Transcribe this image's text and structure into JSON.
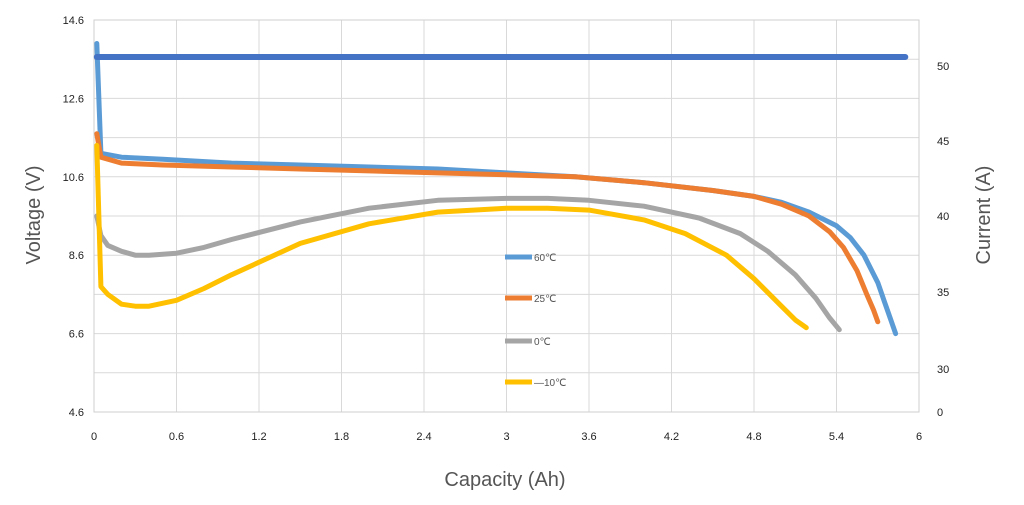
{
  "chart_data": {
    "type": "line",
    "title": "",
    "xlabel": "Capacity (Ah)",
    "ylabel_left": "Voltage (V)",
    "ylabel_right": "Current (A)",
    "x_ticks": [
      "0",
      "0.6",
      "1.2",
      "1.8",
      "2.4",
      "3",
      "3.6",
      "4.2",
      "4.8",
      "5.4",
      "6"
    ],
    "y_left_ticks": [
      "4.6",
      "6.6",
      "8.6",
      "10.6",
      "12.6",
      "14.6"
    ],
    "y_right_ticks": [
      "0",
      "30",
      "35",
      "40",
      "45",
      "50"
    ],
    "xlim": [
      0,
      6
    ],
    "ylim_left": [
      4.6,
      14.6
    ],
    "grid": true,
    "legend_position": "center",
    "colors": {
      "60": "#5b9bd5",
      "25": "#ed7d31",
      "0": "#a5a5a5",
      "-10": "#ffc000",
      "current": "#4472c4"
    },
    "series": [
      {
        "name": "60℃",
        "color": "#5b9bd5",
        "x": [
          0.02,
          0.05,
          0.2,
          0.5,
          1.0,
          1.5,
          2.0,
          2.5,
          3.0,
          3.5,
          4.0,
          4.5,
          4.8,
          5.0,
          5.2,
          5.4,
          5.5,
          5.6,
          5.7,
          5.75,
          5.8,
          5.83
        ],
        "y": [
          14.0,
          11.2,
          11.1,
          11.05,
          10.95,
          10.9,
          10.85,
          10.8,
          10.7,
          10.6,
          10.45,
          10.25,
          10.1,
          9.95,
          9.7,
          9.35,
          9.05,
          8.6,
          7.9,
          7.4,
          6.9,
          6.6
        ]
      },
      {
        "name": "25℃",
        "color": "#ed7d31",
        "x": [
          0.02,
          0.05,
          0.2,
          0.5,
          1.0,
          1.5,
          2.0,
          2.5,
          3.0,
          3.5,
          4.0,
          4.5,
          4.8,
          5.0,
          5.2,
          5.35,
          5.45,
          5.55,
          5.62,
          5.67,
          5.7
        ],
        "y": [
          11.7,
          11.1,
          10.95,
          10.9,
          10.85,
          10.8,
          10.75,
          10.7,
          10.65,
          10.6,
          10.45,
          10.25,
          10.1,
          9.9,
          9.6,
          9.2,
          8.8,
          8.2,
          7.6,
          7.2,
          6.9
        ]
      },
      {
        "name": "0℃",
        "color": "#a5a5a5",
        "x": [
          0.02,
          0.05,
          0.1,
          0.2,
          0.3,
          0.4,
          0.6,
          0.8,
          1.0,
          1.5,
          2.0,
          2.5,
          3.0,
          3.3,
          3.6,
          4.0,
          4.4,
          4.7,
          4.9,
          5.1,
          5.25,
          5.35,
          5.42
        ],
        "y": [
          9.6,
          9.1,
          8.85,
          8.7,
          8.6,
          8.6,
          8.65,
          8.8,
          9.0,
          9.45,
          9.8,
          10.0,
          10.05,
          10.05,
          10.0,
          9.85,
          9.55,
          9.15,
          8.7,
          8.1,
          7.5,
          7.0,
          6.7
        ]
      },
      {
        "name": "—10℃",
        "color": "#ffc000",
        "x": [
          0.02,
          0.05,
          0.1,
          0.2,
          0.3,
          0.4,
          0.6,
          0.8,
          1.0,
          1.5,
          2.0,
          2.5,
          3.0,
          3.3,
          3.6,
          4.0,
          4.3,
          4.6,
          4.8,
          5.0,
          5.1,
          5.18
        ],
        "y": [
          11.4,
          7.8,
          7.6,
          7.35,
          7.3,
          7.3,
          7.45,
          7.75,
          8.1,
          8.9,
          9.4,
          9.7,
          9.8,
          9.8,
          9.75,
          9.5,
          9.15,
          8.6,
          8.0,
          7.3,
          6.95,
          6.75
        ]
      }
    ],
    "current_series": {
      "name": "Current",
      "color": "#4472c4",
      "axis": "right",
      "x": [
        0.02,
        5.9
      ],
      "y": [
        50.6,
        50.6
      ]
    }
  }
}
